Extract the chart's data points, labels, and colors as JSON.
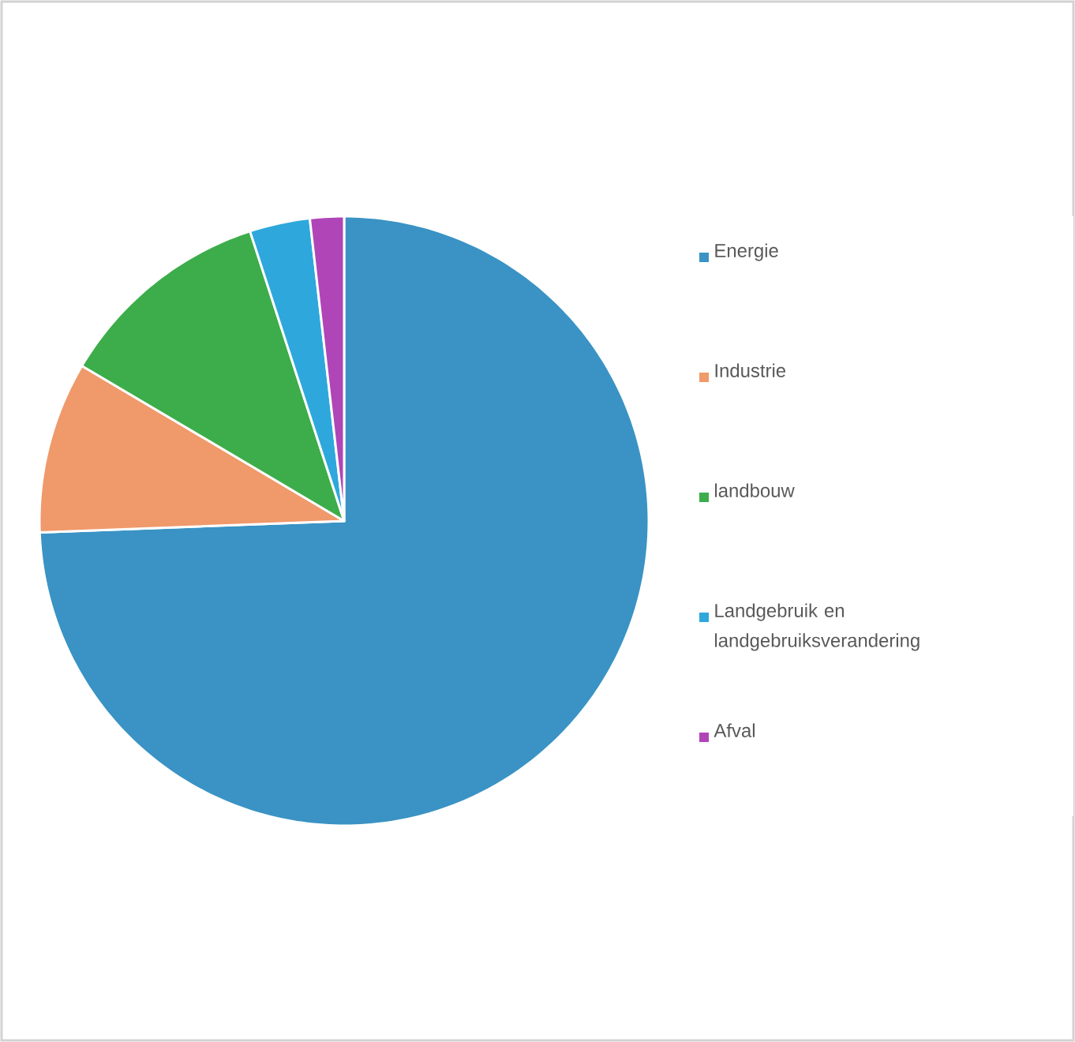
{
  "chart_data": {
    "type": "pie",
    "categories": [
      "Energie",
      "Industrie",
      "landbouw",
      "Landgebruik en landgebruiksverandering",
      "Afval"
    ],
    "values": [
      74.4,
      9.1,
      11.5,
      3.2,
      1.8
    ],
    "colors": [
      "#3a93c4",
      "#f0996a",
      "#3cad4a",
      "#2ea8dc",
      "#b045b8"
    ],
    "legend": "right"
  }
}
